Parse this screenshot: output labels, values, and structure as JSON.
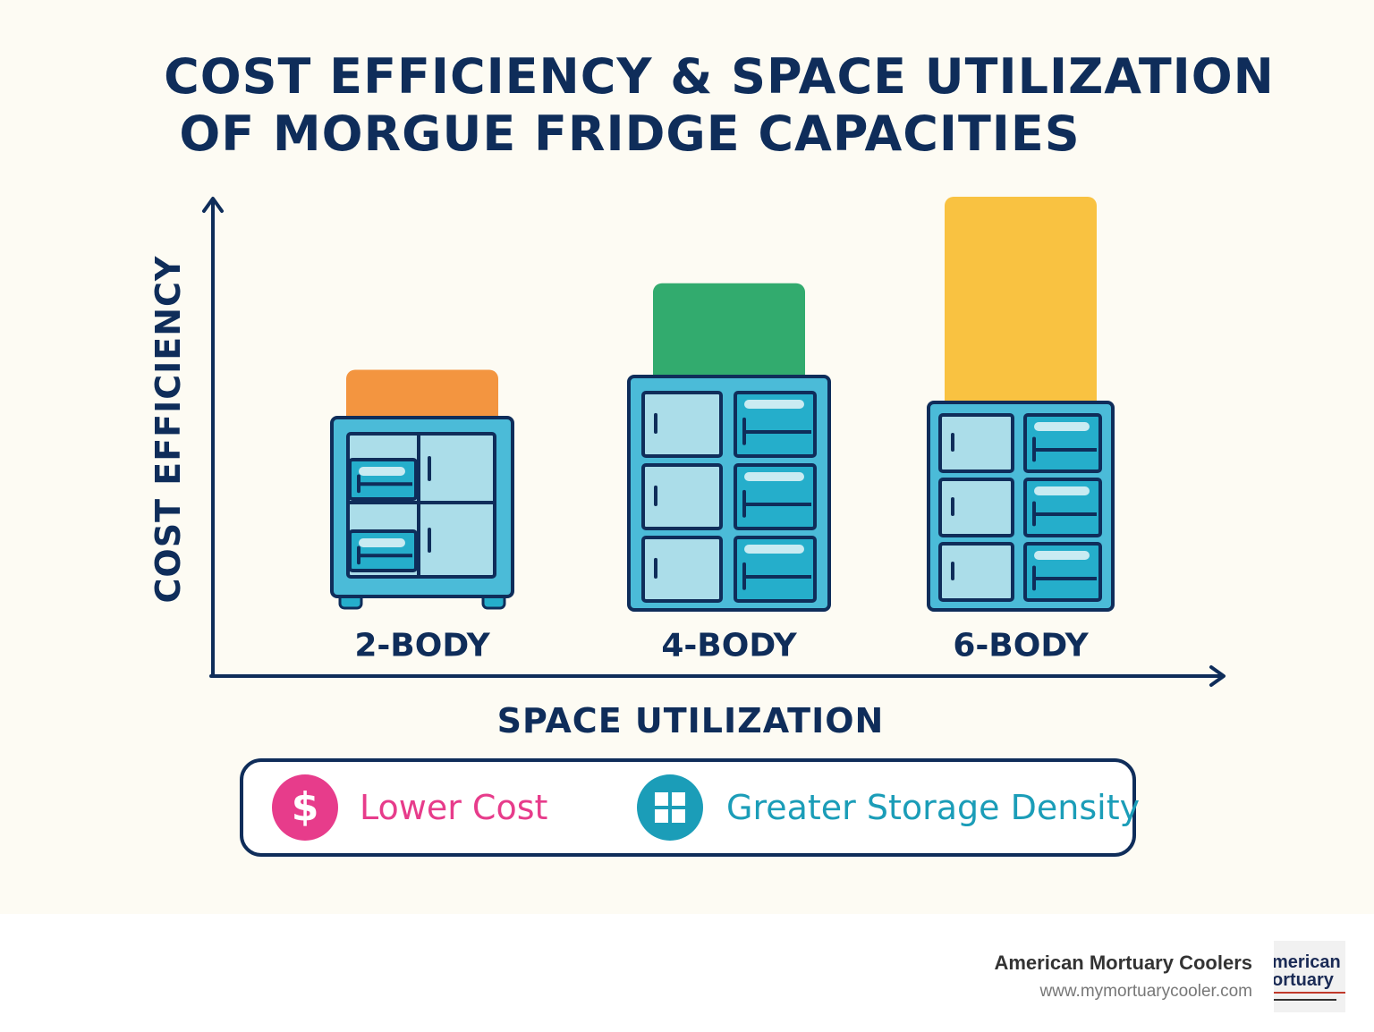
{
  "chart_data": {
    "type": "bar",
    "title_lines": [
      "COST EFFICIENCY & SPACE UTILIZATION",
      "OF MORGUE FRIDGE CAPACITIES"
    ],
    "xlabel": "SPACE UTILIZATION",
    "ylabel": "COST EFFICIENCY",
    "categories": [
      "2-BODY",
      "4-BODY",
      "6-BODY"
    ],
    "values": [
      1,
      2,
      3
    ],
    "bar_colors": [
      "#f39540",
      "#32ab6e",
      "#f9c241"
    ],
    "legend": [
      {
        "label": "Lower Cost",
        "icon": "dollar-icon",
        "color": "#e73c8b"
      },
      {
        "label": "Greater Storage Density",
        "icon": "grid-icon",
        "color": "#1b9db8"
      }
    ]
  },
  "footer": {
    "brand_name": "American Mortuary Coolers",
    "url": "www.mymortuarycooler.com",
    "logo_lines": [
      "merican",
      "ortuary"
    ]
  }
}
